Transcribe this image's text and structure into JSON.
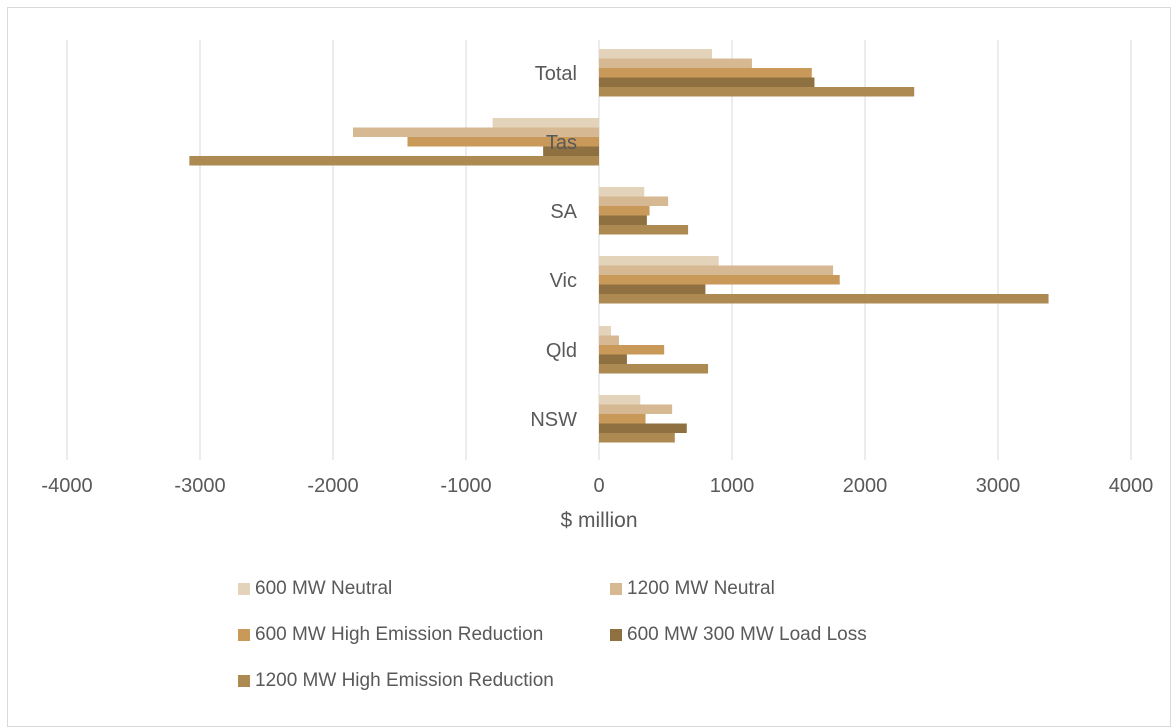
{
  "chart_data": {
    "type": "bar",
    "orientation": "horizontal",
    "title": "",
    "xlabel": "$ million",
    "ylabel": "",
    "xlim": [
      -4000,
      4000
    ],
    "x_ticks": [
      "-4000",
      "-3000",
      "-2000",
      "-1000",
      "0",
      "1000",
      "2000",
      "3000",
      "4000"
    ],
    "grid": "vertical",
    "legend_position": "bottom",
    "categories": [
      "Total",
      "Tas",
      "SA",
      "Vic",
      "Qld",
      "NSW"
    ],
    "series": [
      {
        "name": "600 MW Neutral",
        "color": "#e3d3bb",
        "values": [
          850,
          -800,
          340,
          900,
          90,
          310
        ]
      },
      {
        "name": "1200 MW Neutral",
        "color": "#d6b992",
        "values": [
          1150,
          -1850,
          520,
          1760,
          150,
          550
        ]
      },
      {
        "name": "600 MW High Emission Reduction",
        "color": "#c9995a",
        "values": [
          1600,
          -1440,
          380,
          1810,
          490,
          350
        ]
      },
      {
        "name": "600 MW 300 MW Load Loss",
        "color": "#8f7040",
        "values": [
          1620,
          -420,
          360,
          800,
          210,
          660
        ]
      },
      {
        "name": "1200 MW High Emission Reduction",
        "color": "#ad8a52",
        "values": [
          2370,
          -3080,
          670,
          3380,
          820,
          570
        ]
      }
    ]
  }
}
